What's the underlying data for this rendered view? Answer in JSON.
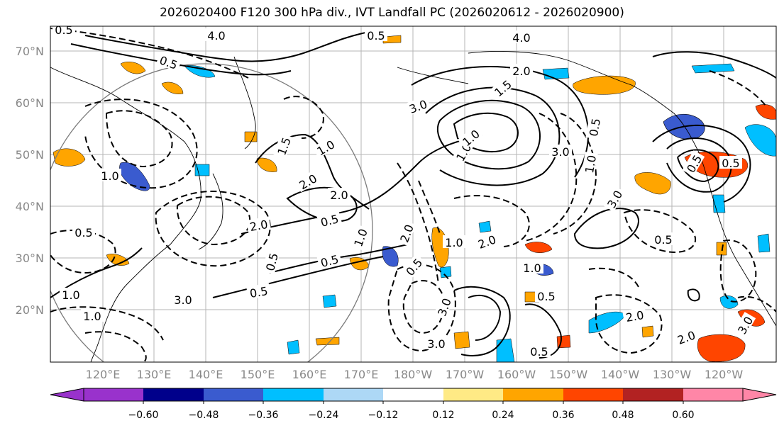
{
  "title": "2026020400 F120 300 hPa div., IVT Landfall PC (2026020612 - 2026020900)",
  "map": {
    "lat_labels": [
      "70°N",
      "60°N",
      "50°N",
      "40°N",
      "30°N",
      "20°N"
    ],
    "lon_labels": [
      "120°E",
      "130°E",
      "140°E",
      "150°E",
      "160°E",
      "170°E",
      "180°W",
      "170°W",
      "160°W",
      "150°W",
      "140°W",
      "130°W",
      "120°W"
    ],
    "contour_labels": [
      "0.5",
      "4.0",
      "0.5",
      "0.5",
      "4.0",
      "2.0",
      "3.0",
      "1.5",
      "3.0",
      "1.0",
      "2.0",
      "2.0",
      "0.5",
      "1.5",
      "2.0",
      "0.5",
      "0.5",
      "1.0",
      "2.0",
      "0.5",
      "3.0",
      "0.5",
      "1.0",
      "1.0",
      "0.5",
      "1.0",
      "1.0",
      "2.0",
      "3.0",
      "0.5",
      "1.0",
      "1.0",
      "1.0",
      "0.5",
      "0.5",
      "3.0",
      "1.0",
      "0.5",
      "2.0",
      "0.5",
      "2.0",
      "3.0",
      "0.5",
      "3.0"
    ]
  },
  "colorbar": {
    "colors": [
      "#9932cc",
      "#00008b",
      "#3a5bcf",
      "#00bfff",
      "#add8f6",
      "#ffffff",
      "#ffea85",
      "#ffa500",
      "#ff4500",
      "#b22222",
      "#ff86a7"
    ],
    "tick_labels": [
      "−0.60",
      "−0.48",
      "−0.36",
      "−0.24",
      "−0.12",
      "0.12",
      "0.24",
      "0.36",
      "0.48",
      "0.60"
    ]
  }
}
